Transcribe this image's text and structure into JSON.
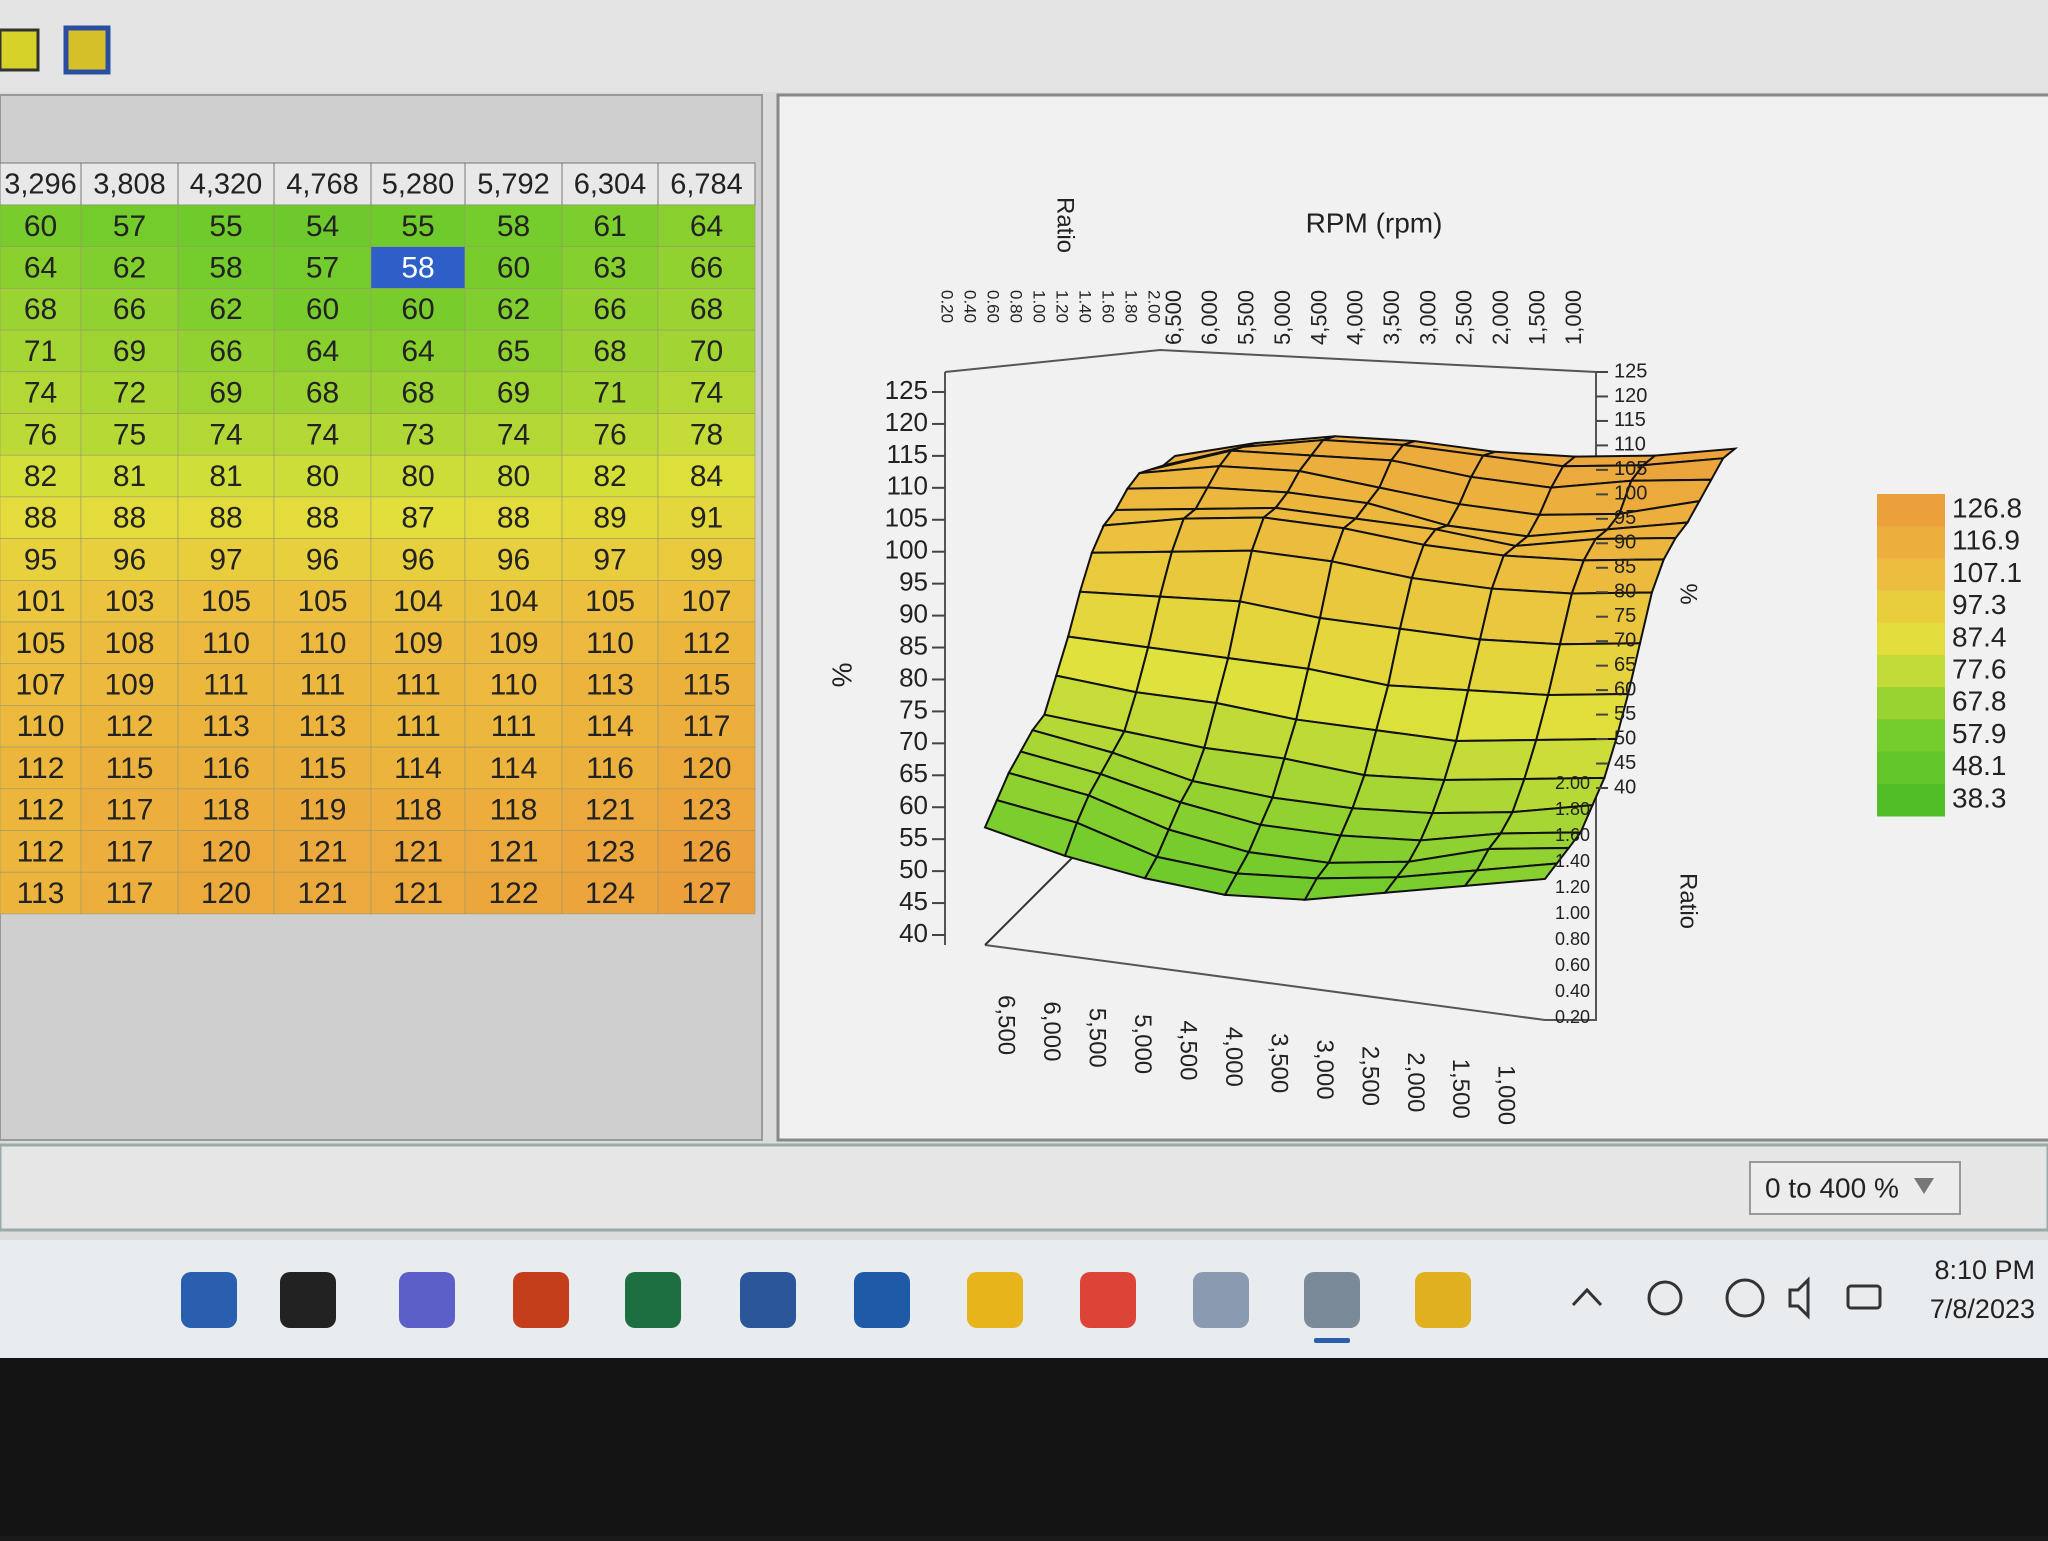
{
  "toolbar": {
    "fragment": ")"
  },
  "table": {
    "columns": [
      "3,296",
      "3,808",
      "4,320",
      "4,768",
      "5,280",
      "5,792",
      "6,304",
      "6,784"
    ],
    "rows": [
      [
        60,
        57,
        55,
        54,
        55,
        58,
        61,
        64
      ],
      [
        64,
        62,
        58,
        57,
        58,
        60,
        63,
        66
      ],
      [
        68,
        66,
        62,
        60,
        60,
        62,
        66,
        68
      ],
      [
        71,
        69,
        66,
        64,
        64,
        65,
        68,
        70
      ],
      [
        74,
        72,
        69,
        68,
        68,
        69,
        71,
        74
      ],
      [
        76,
        75,
        74,
        74,
        73,
        74,
        76,
        78
      ],
      [
        82,
        81,
        81,
        80,
        80,
        80,
        82,
        84
      ],
      [
        88,
        88,
        88,
        88,
        87,
        88,
        89,
        91
      ],
      [
        95,
        96,
        97,
        96,
        96,
        96,
        97,
        99
      ],
      [
        101,
        103,
        105,
        105,
        104,
        104,
        105,
        107
      ],
      [
        105,
        108,
        110,
        110,
        109,
        109,
        110,
        112
      ],
      [
        107,
        109,
        111,
        111,
        111,
        110,
        113,
        115
      ],
      [
        110,
        112,
        113,
        113,
        111,
        111,
        114,
        117
      ],
      [
        112,
        115,
        116,
        115,
        114,
        114,
        116,
        120
      ],
      [
        112,
        117,
        118,
        119,
        118,
        118,
        121,
        123
      ],
      [
        112,
        117,
        120,
        121,
        121,
        121,
        123,
        126
      ],
      [
        113,
        117,
        120,
        121,
        121,
        122,
        124,
        127
      ]
    ],
    "selected": {
      "row": 1,
      "column": 4
    }
  },
  "surface_plot": {
    "ratio_label": "Ratio",
    "rpm_label": "RPM (rpm)",
    "percent_label": "%",
    "percent_ticks": [
      40,
      45,
      50,
      55,
      60,
      65,
      70,
      75,
      80,
      85,
      90,
      95,
      100,
      105,
      110,
      115,
      120,
      125
    ],
    "rpm_ticks": [
      "6,500",
      "6,000",
      "5,500",
      "5,000",
      "4,500",
      "4,000",
      "3,500",
      "3,000",
      "2,500",
      "2,000",
      "1,500",
      "1,000"
    ],
    "ratio_ticks": [
      "0.20",
      "0.40",
      "0.60",
      "0.80",
      "1.00",
      "1.20",
      "1.40",
      "1.60",
      "1.80",
      "2.00"
    ],
    "legend": [
      126.8,
      116.9,
      107.1,
      97.3,
      87.4,
      77.6,
      67.8,
      57.9,
      48.1,
      38.3
    ]
  },
  "status": {
    "range": "0 to 400 %"
  },
  "taskbar": {
    "time": "8:10 PM",
    "date": "7/8/2023"
  }
}
